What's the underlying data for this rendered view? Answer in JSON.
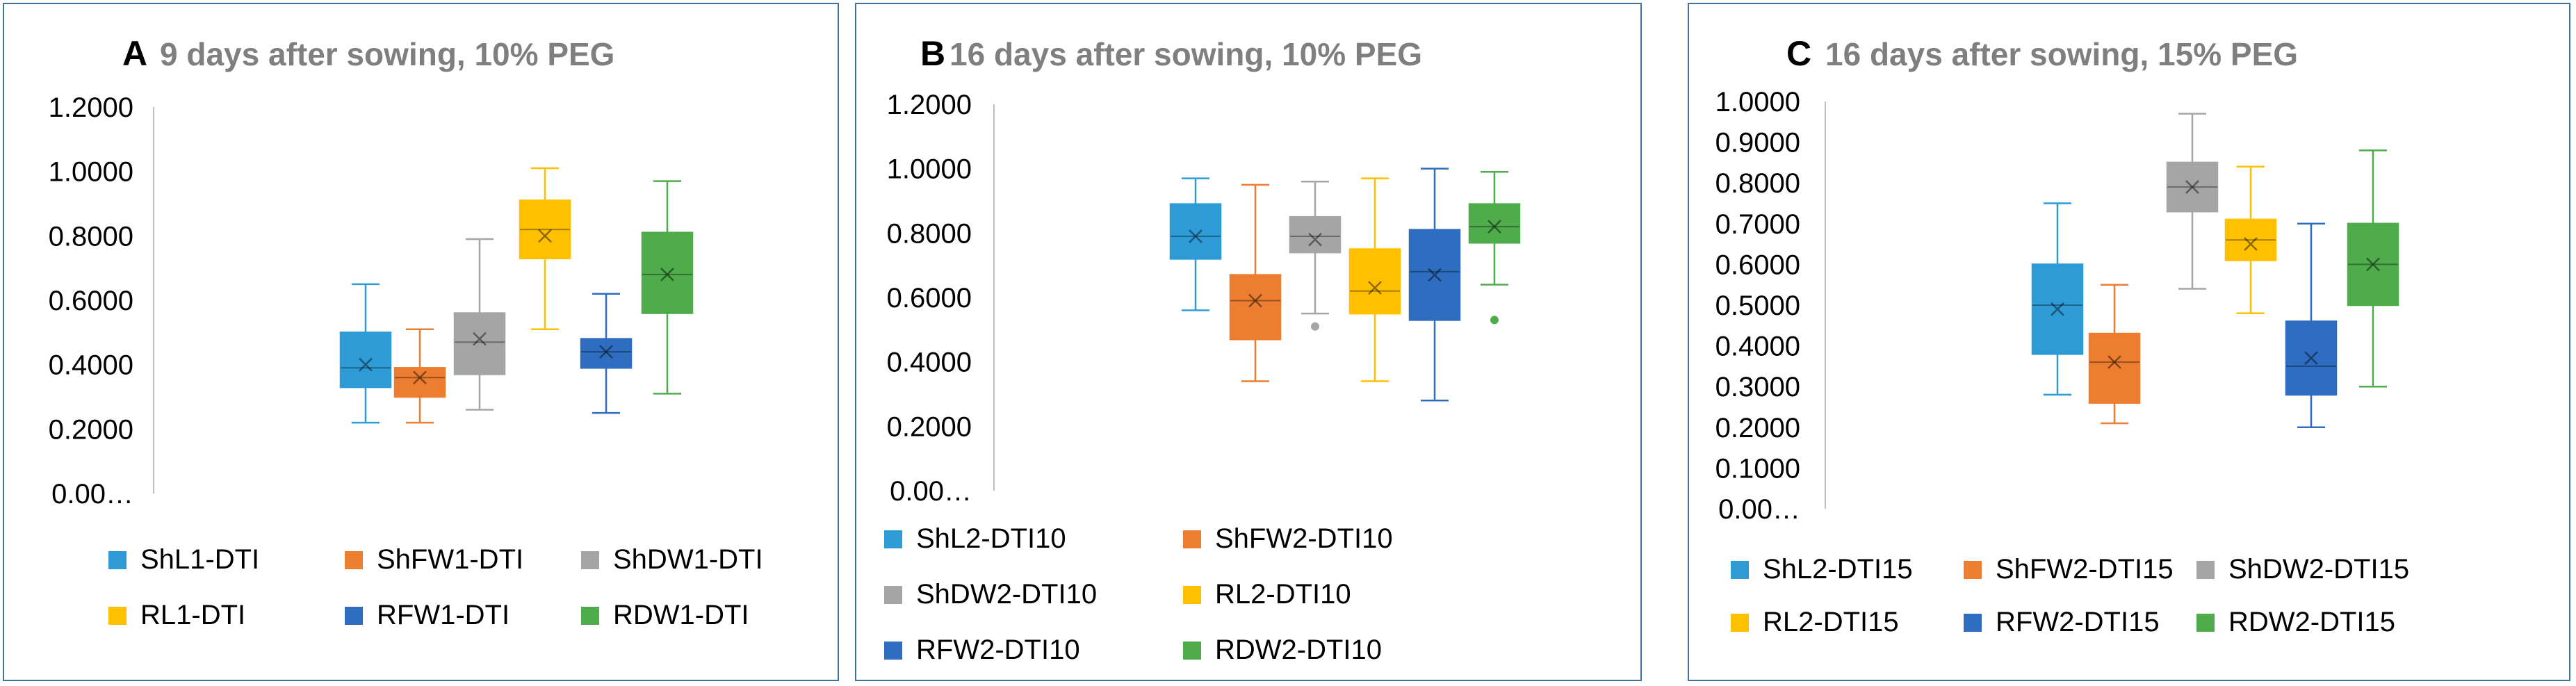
{
  "chart_data": [
    {
      "type": "box",
      "panel": "A",
      "title": "9 days after sowing, 10% PEG",
      "yticks": [
        "0.00…",
        "0.2000",
        "0.4000",
        "0.6000",
        "0.8000",
        "1.0000",
        "1.2000"
      ],
      "ylim": [
        0,
        1.2
      ],
      "series": [
        {
          "name": "ShL1-DTI",
          "color": "#2e9bd6",
          "min": 0.22,
          "q1": 0.33,
          "median": 0.39,
          "q3": 0.5,
          "max": 0.65,
          "mean": 0.4,
          "outliers": []
        },
        {
          "name": "ShFW1-DTI",
          "color": "#ed7d31",
          "min": 0.22,
          "q1": 0.3,
          "median": 0.36,
          "q3": 0.39,
          "max": 0.51,
          "mean": 0.36,
          "outliers": []
        },
        {
          "name": "ShDW1-DTI",
          "color": "#a5a5a5",
          "min": 0.26,
          "q1": 0.37,
          "median": 0.47,
          "q3": 0.56,
          "max": 0.79,
          "mean": 0.48,
          "outliers": []
        },
        {
          "name": "RL1-DTI",
          "color": "#ffc000",
          "min": 0.51,
          "q1": 0.73,
          "median": 0.82,
          "q3": 0.91,
          "max": 1.01,
          "mean": 0.8,
          "outliers": []
        },
        {
          "name": "RFW1-DTI",
          "color": "#2f6dc1",
          "min": 0.25,
          "q1": 0.39,
          "median": 0.44,
          "q3": 0.48,
          "max": 0.62,
          "mean": 0.44,
          "outliers": []
        },
        {
          "name": "RDW1-DTI",
          "color": "#4eac4b",
          "min": 0.31,
          "q1": 0.56,
          "median": 0.68,
          "q3": 0.81,
          "max": 0.97,
          "mean": 0.68,
          "outliers": []
        }
      ]
    },
    {
      "type": "box",
      "panel": "B",
      "title": "16 days after sowing, 10% PEG",
      "yticks": [
        "0.00…",
        "0.2000",
        "0.4000",
        "0.6000",
        "0.8000",
        "1.0000",
        "1.2000"
      ],
      "ylim": [
        0,
        1.2
      ],
      "series": [
        {
          "name": "ShL2-DTI10",
          "color": "#2e9bd6",
          "min": 0.56,
          "q1": 0.72,
          "median": 0.79,
          "q3": 0.89,
          "max": 0.97,
          "mean": 0.79,
          "outliers": []
        },
        {
          "name": "ShFW2-DTI10",
          "color": "#ed7d31",
          "min": 0.34,
          "q1": 0.47,
          "median": 0.59,
          "q3": 0.67,
          "max": 0.95,
          "mean": 0.59,
          "outliers": []
        },
        {
          "name": "ShDW2-DTI10",
          "color": "#a5a5a5",
          "min": 0.55,
          "q1": 0.74,
          "median": 0.79,
          "q3": 0.85,
          "max": 0.96,
          "mean": 0.78,
          "outliers": [
            0.51
          ]
        },
        {
          "name": "RL2-DTI10",
          "color": "#ffc000",
          "min": 0.34,
          "q1": 0.55,
          "median": 0.62,
          "q3": 0.75,
          "max": 0.97,
          "mean": 0.63,
          "outliers": []
        },
        {
          "name": "RFW2-DTI10",
          "color": "#2f6dc1",
          "min": 0.28,
          "q1": 0.53,
          "median": 0.68,
          "q3": 0.81,
          "max": 1.0,
          "mean": 0.67,
          "outliers": []
        },
        {
          "name": "RDW2-DTI10",
          "color": "#4eac4b",
          "min": 0.64,
          "q1": 0.77,
          "median": 0.82,
          "q3": 0.89,
          "max": 0.99,
          "mean": 0.82,
          "outliers": [
            0.53
          ]
        }
      ]
    },
    {
      "type": "box",
      "panel": "C",
      "title": "16 days after sowing, 15% PEG",
      "yticks": [
        "0.00…",
        "0.1000",
        "0.2000",
        "0.3000",
        "0.4000",
        "0.5000",
        "0.6000",
        "0.7000",
        "0.8000",
        "0.9000",
        "1.0000"
      ],
      "ylim": [
        0,
        1.0
      ],
      "series": [
        {
          "name": "ShL2-DTI15",
          "color": "#2e9bd6",
          "min": 0.28,
          "q1": 0.38,
          "median": 0.5,
          "q3": 0.6,
          "max": 0.75,
          "mean": 0.49,
          "outliers": []
        },
        {
          "name": "ShFW2-DTI15",
          "color": "#ed7d31",
          "min": 0.21,
          "q1": 0.26,
          "median": 0.36,
          "q3": 0.43,
          "max": 0.55,
          "mean": 0.36,
          "outliers": []
        },
        {
          "name": "ShDW2-DTI15",
          "color": "#a5a5a5",
          "min": 0.54,
          "q1": 0.73,
          "median": 0.79,
          "q3": 0.85,
          "max": 0.97,
          "mean": 0.79,
          "outliers": []
        },
        {
          "name": "RL2-DTI15",
          "color": "#ffc000",
          "min": 0.48,
          "q1": 0.61,
          "median": 0.66,
          "q3": 0.71,
          "max": 0.84,
          "mean": 0.65,
          "outliers": []
        },
        {
          "name": "RFW2-DTI15",
          "color": "#2f6dc1",
          "min": 0.2,
          "q1": 0.28,
          "median": 0.35,
          "q3": 0.46,
          "max": 0.7,
          "mean": 0.37,
          "outliers": []
        },
        {
          "name": "RDW2-DTI15",
          "color": "#4eac4b",
          "min": 0.3,
          "q1": 0.5,
          "median": 0.6,
          "q3": 0.7,
          "max": 0.88,
          "mean": 0.6,
          "outliers": []
        }
      ]
    }
  ]
}
